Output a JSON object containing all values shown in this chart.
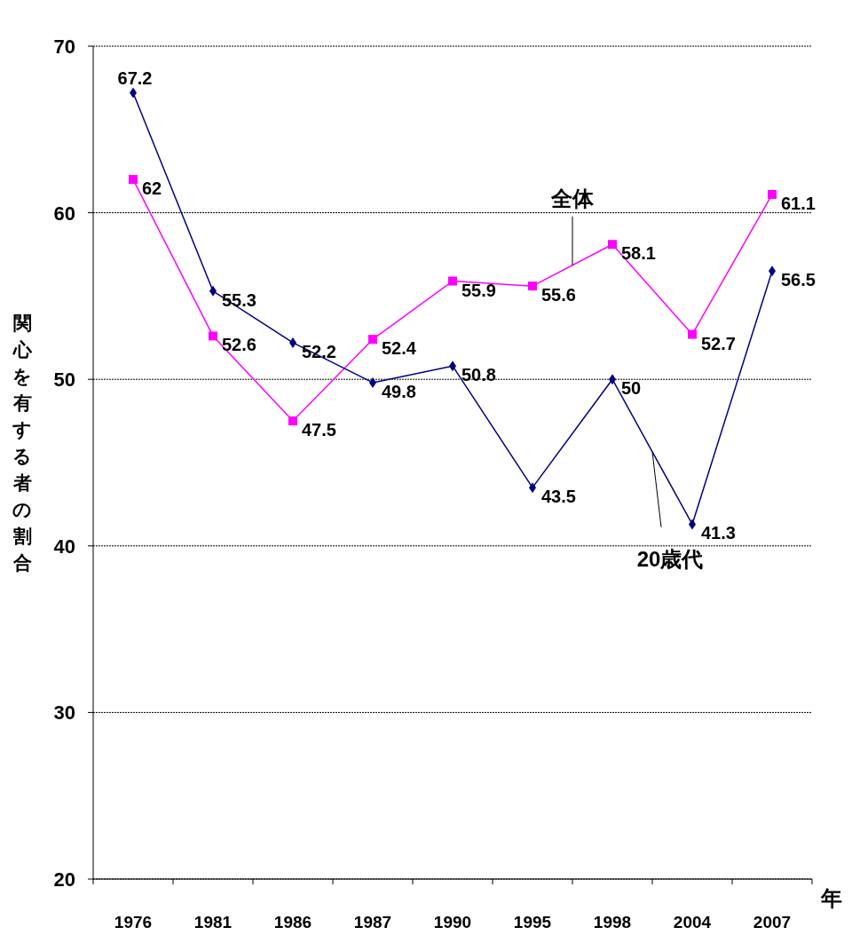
{
  "chart_data": {
    "type": "line",
    "ylabel": "関心を有する者の割合",
    "xlabel": "年",
    "categories": [
      "1976",
      "1981",
      "1986",
      "1987",
      "1990",
      "1995",
      "1998",
      "2004",
      "2007"
    ],
    "series": [
      {
        "name": "全体",
        "color": "#ff00ff",
        "marker": "square",
        "values": [
          62,
          52.6,
          47.5,
          52.4,
          55.9,
          55.6,
          58.1,
          52.7,
          61.1
        ]
      },
      {
        "name": "20歳代",
        "color": "#000080",
        "marker": "diamond",
        "values": [
          67.2,
          55.3,
          52.2,
          49.8,
          50.8,
          43.5,
          50,
          41.3,
          56.5
        ]
      }
    ],
    "ylim": [
      20,
      70
    ],
    "yticks": [
      20,
      30,
      40,
      50,
      60,
      70
    ],
    "grid": "y",
    "data_labels": true
  }
}
